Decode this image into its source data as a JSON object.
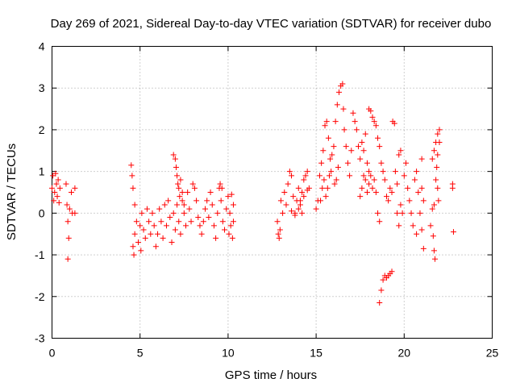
{
  "chart_data": {
    "type": "scatter",
    "title": "Day 269 of 2021, Sidereal Day-to-day VTEC variation (SDTVAR) for receiver dubo",
    "xlabel": "GPS time / hours",
    "ylabel": "SDTVAR / TECUs",
    "xlim": [
      0,
      25
    ],
    "ylim": [
      -3,
      4
    ],
    "xticks": [
      0,
      5,
      10,
      15,
      20,
      25
    ],
    "yticks": [
      -3,
      -2,
      -1,
      0,
      1,
      2,
      3,
      4
    ],
    "grid": true,
    "marker": "+",
    "color": "#ff0000",
    "series": [
      {
        "name": "SDTVAR",
        "points": [
          [
            0.0,
            0.6
          ],
          [
            0.05,
            0.9
          ],
          [
            0.1,
            0.3
          ],
          [
            0.15,
            0.5
          ],
          [
            0.2,
            0.95
          ],
          [
            0.25,
            0.7
          ],
          [
            0.3,
            0.4
          ],
          [
            0.35,
            0.8
          ],
          [
            0.4,
            0.25
          ],
          [
            0.45,
            0.6
          ],
          [
            0.8,
            0.7
          ],
          [
            0.85,
            0.2
          ],
          [
            0.9,
            -0.2
          ],
          [
            0.95,
            -0.6
          ],
          [
            1.0,
            0.1
          ],
          [
            0.9,
            -1.1
          ],
          [
            1.1,
            0.5
          ],
          [
            1.15,
            0.0
          ],
          [
            1.3,
            0.6
          ],
          [
            1.3,
            0.0
          ],
          [
            4.5,
            1.15
          ],
          [
            4.55,
            0.9
          ],
          [
            4.6,
            0.6
          ],
          [
            4.7,
            0.2
          ],
          [
            4.6,
            -0.8
          ],
          [
            4.65,
            -1.0
          ],
          [
            4.7,
            -0.5
          ],
          [
            4.8,
            -0.2
          ],
          [
            4.9,
            -0.7
          ],
          [
            5.0,
            -0.3
          ],
          [
            5.05,
            -0.9
          ],
          [
            5.1,
            0.0
          ],
          [
            5.2,
            -0.4
          ],
          [
            5.3,
            -0.6
          ],
          [
            5.4,
            0.1
          ],
          [
            5.5,
            -0.2
          ],
          [
            5.6,
            -0.5
          ],
          [
            5.7,
            0.0
          ],
          [
            5.8,
            -0.3
          ],
          [
            5.9,
            -0.8
          ],
          [
            6.0,
            -0.5
          ],
          [
            6.1,
            0.1
          ],
          [
            6.2,
            -0.2
          ],
          [
            6.3,
            -0.6
          ],
          [
            6.4,
            0.2
          ],
          [
            6.5,
            -0.3
          ],
          [
            6.6,
            0.3
          ],
          [
            6.7,
            -0.1
          ],
          [
            6.8,
            -0.7
          ],
          [
            6.9,
            0.0
          ],
          [
            7.0,
            -0.4
          ],
          [
            7.1,
            0.2
          ],
          [
            7.2,
            -0.2
          ],
          [
            7.3,
            -0.5
          ],
          [
            7.4,
            0.3
          ],
          [
            7.5,
            0.0
          ],
          [
            7.6,
            -0.3
          ],
          [
            7.7,
            0.5
          ],
          [
            7.8,
            0.1
          ],
          [
            7.9,
            -0.2
          ],
          [
            6.9,
            1.4
          ],
          [
            7.0,
            1.3
          ],
          [
            7.05,
            1.1
          ],
          [
            7.1,
            0.9
          ],
          [
            7.15,
            0.7
          ],
          [
            7.2,
            0.6
          ],
          [
            7.25,
            0.4
          ],
          [
            7.3,
            0.8
          ],
          [
            7.4,
            0.5
          ],
          [
            7.5,
            0.2
          ],
          [
            8.0,
            0.7
          ],
          [
            8.1,
            0.6
          ],
          [
            8.2,
            0.3
          ],
          [
            8.3,
            -0.1
          ],
          [
            8.4,
            -0.3
          ],
          [
            8.5,
            -0.5
          ],
          [
            8.6,
            -0.2
          ],
          [
            8.7,
            0.1
          ],
          [
            8.8,
            0.3
          ],
          [
            8.9,
            -0.1
          ],
          [
            9.0,
            0.5
          ],
          [
            9.1,
            0.2
          ],
          [
            9.2,
            -0.3
          ],
          [
            9.3,
            -0.6
          ],
          [
            9.4,
            0.0
          ],
          [
            9.5,
            0.6
          ],
          [
            9.6,
            0.3
          ],
          [
            9.7,
            -0.2
          ],
          [
            9.8,
            -0.4
          ],
          [
            9.9,
            0.1
          ],
          [
            9.55,
            0.7
          ],
          [
            9.65,
            0.6
          ],
          [
            10.0,
            0.4
          ],
          [
            10.05,
            -0.5
          ],
          [
            10.1,
            0.0
          ],
          [
            10.15,
            -0.3
          ],
          [
            10.2,
            0.45
          ],
          [
            10.25,
            -0.6
          ],
          [
            10.3,
            0.2
          ],
          [
            10.3,
            -0.2
          ],
          [
            12.8,
            -0.2
          ],
          [
            12.85,
            -0.5
          ],
          [
            12.9,
            -0.6
          ],
          [
            12.95,
            -0.4
          ],
          [
            13.0,
            0.3
          ],
          [
            13.1,
            0.0
          ],
          [
            13.2,
            0.5
          ],
          [
            13.3,
            0.2
          ],
          [
            13.4,
            0.7
          ],
          [
            13.5,
            1.0
          ],
          [
            13.6,
            0.9
          ],
          [
            13.7,
            0.4
          ],
          [
            13.8,
            0.0
          ],
          [
            13.9,
            0.3
          ],
          [
            14.0,
            0.6
          ],
          [
            14.1,
            0.2
          ],
          [
            14.2,
            0.5
          ],
          [
            14.3,
            0.8
          ],
          [
            14.4,
            0.9
          ],
          [
            14.5,
            1.0
          ],
          [
            13.6,
            0.05
          ],
          [
            13.8,
            -0.05
          ],
          [
            14.0,
            0.1
          ],
          [
            14.1,
            0.3
          ],
          [
            14.2,
            0.0
          ],
          [
            14.3,
            0.4
          ],
          [
            14.5,
            0.55
          ],
          [
            14.6,
            0.6
          ],
          [
            15.0,
            0.1
          ],
          [
            15.1,
            0.3
          ],
          [
            15.2,
            0.9
          ],
          [
            15.3,
            1.2
          ],
          [
            15.4,
            1.5
          ],
          [
            15.5,
            2.1
          ],
          [
            15.6,
            2.2
          ],
          [
            15.7,
            1.8
          ],
          [
            15.8,
            1.3
          ],
          [
            15.9,
            1.4
          ],
          [
            16.0,
            1.6
          ],
          [
            16.1,
            2.2
          ],
          [
            15.25,
            0.3
          ],
          [
            15.35,
            0.6
          ],
          [
            15.45,
            0.8
          ],
          [
            15.55,
            0.4
          ],
          [
            15.65,
            0.6
          ],
          [
            15.75,
            0.9
          ],
          [
            15.85,
            1.0
          ],
          [
            16.05,
            0.7
          ],
          [
            16.15,
            0.8
          ],
          [
            16.25,
            1.1
          ],
          [
            16.2,
            2.6
          ],
          [
            16.3,
            2.9
          ],
          [
            16.4,
            3.05
          ],
          [
            16.5,
            3.1
          ],
          [
            16.55,
            2.5
          ],
          [
            16.6,
            2.0
          ],
          [
            16.7,
            1.6
          ],
          [
            16.8,
            1.2
          ],
          [
            16.9,
            0.9
          ],
          [
            17.0,
            1.5
          ],
          [
            17.1,
            2.4
          ],
          [
            17.2,
            2.2
          ],
          [
            17.3,
            2.0
          ],
          [
            17.4,
            1.6
          ],
          [
            17.5,
            1.3
          ],
          [
            17.6,
            1.7
          ],
          [
            17.7,
            1.5
          ],
          [
            17.8,
            1.9
          ],
          [
            17.9,
            1.2
          ],
          [
            18.0,
            1.0
          ],
          [
            17.5,
            0.4
          ],
          [
            17.6,
            0.6
          ],
          [
            17.7,
            0.9
          ],
          [
            17.8,
            0.8
          ],
          [
            17.9,
            0.5
          ],
          [
            18.0,
            0.7
          ],
          [
            18.1,
            0.9
          ],
          [
            18.2,
            0.6
          ],
          [
            18.3,
            0.8
          ],
          [
            18.4,
            0.5
          ],
          [
            18.0,
            2.5
          ],
          [
            18.1,
            2.45
          ],
          [
            18.2,
            2.3
          ],
          [
            18.3,
            2.2
          ],
          [
            18.4,
            2.1
          ],
          [
            18.5,
            1.8
          ],
          [
            18.6,
            1.6
          ],
          [
            18.7,
            1.2
          ],
          [
            18.8,
            1.0
          ],
          [
            18.9,
            0.8
          ],
          [
            18.5,
            0.0
          ],
          [
            18.6,
            -0.2
          ],
          [
            18.7,
            -1.85
          ],
          [
            18.8,
            -1.6
          ],
          [
            18.9,
            -1.5
          ],
          [
            18.6,
            -2.15
          ],
          [
            19.0,
            -1.55
          ],
          [
            19.1,
            -1.5
          ],
          [
            19.2,
            -1.45
          ],
          [
            19.3,
            -1.4
          ],
          [
            19.0,
            0.4
          ],
          [
            19.1,
            0.3
          ],
          [
            19.2,
            0.6
          ],
          [
            19.3,
            0.5
          ],
          [
            19.35,
            2.2
          ],
          [
            19.45,
            2.15
          ],
          [
            19.5,
            1.0
          ],
          [
            19.6,
            0.7
          ],
          [
            19.7,
            1.4
          ],
          [
            19.8,
            1.5
          ],
          [
            19.6,
            0.0
          ],
          [
            19.7,
            -0.3
          ],
          [
            19.8,
            0.2
          ],
          [
            19.9,
            0.0
          ],
          [
            20.0,
            0.9
          ],
          [
            20.1,
            1.2
          ],
          [
            20.2,
            0.6
          ],
          [
            20.3,
            0.3
          ],
          [
            20.4,
            0.0
          ],
          [
            20.5,
            -0.3
          ],
          [
            20.6,
            0.8
          ],
          [
            20.7,
            1.0
          ],
          [
            20.8,
            0.5
          ],
          [
            20.9,
            0.0
          ],
          [
            21.0,
            -0.4
          ],
          [
            20.7,
            -0.5
          ],
          [
            21.0,
            1.3
          ],
          [
            21.1,
            -0.85
          ],
          [
            21.0,
            0.6
          ],
          [
            21.1,
            0.3
          ],
          [
            21.5,
            -0.3
          ],
          [
            21.6,
            0.1
          ],
          [
            21.65,
            -0.55
          ],
          [
            21.7,
            -0.9
          ],
          [
            21.75,
            -1.1
          ],
          [
            21.6,
            1.3
          ],
          [
            21.7,
            1.5
          ],
          [
            21.8,
            1.7
          ],
          [
            21.9,
            1.9
          ],
          [
            22.0,
            2.0
          ],
          [
            21.8,
            0.8
          ],
          [
            21.85,
            1.1
          ],
          [
            21.9,
            0.6
          ],
          [
            21.95,
            0.3
          ],
          [
            21.7,
            0.2
          ],
          [
            22.75,
            0.7
          ],
          [
            22.75,
            0.6
          ],
          [
            22.8,
            -0.45
          ],
          [
            22.0,
            1.7
          ],
          [
            21.9,
            1.4
          ]
        ]
      }
    ]
  }
}
